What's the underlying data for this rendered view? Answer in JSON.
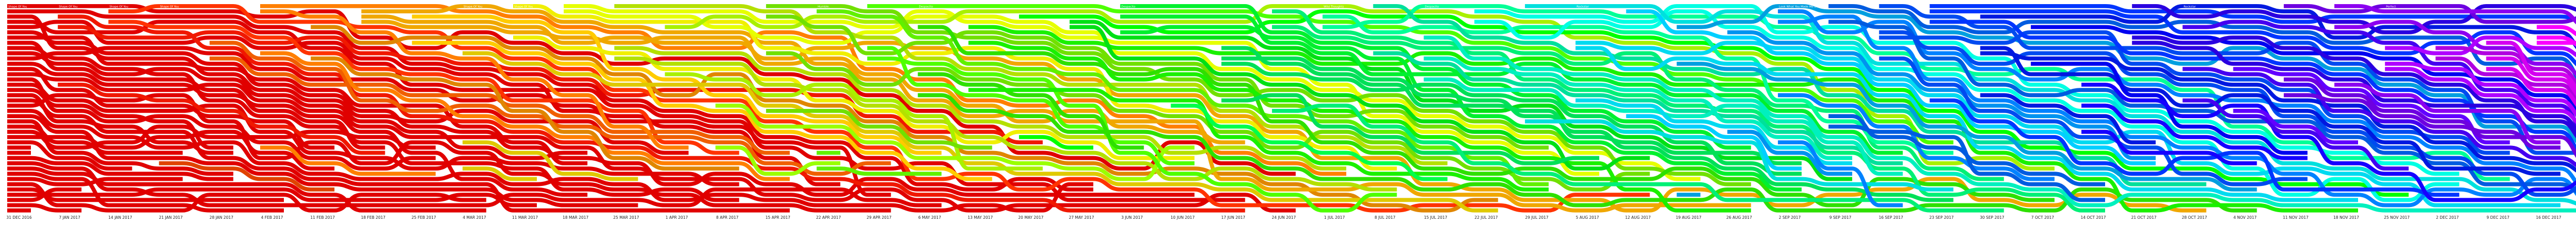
{
  "chart_data": {
    "type": "bump",
    "title": "",
    "xlabel": "",
    "ylabel": "",
    "x": [
      "31 DEC 2016",
      "7 JAN 2017",
      "14 JAN 2017",
      "21 JAN 2017",
      "28 JAN 2017",
      "4 FEB 2017",
      "11 FEB 2017",
      "18 FEB 2017",
      "25 FEB 2017",
      "4 MAR 2017",
      "11 MAR 2017",
      "18 MAR 2017",
      "25 MAR 2017",
      "1 APR 2017",
      "8 APR 2017",
      "15 APR 2017",
      "22 APR 2017",
      "29 APR 2017",
      "6 MAY 2017",
      "13 MAY 2017",
      "20 MAY 2017",
      "27 MAY 2017",
      "3 JUN 2017",
      "10 JUN 2017",
      "17 JUN 2017",
      "24 JUN 2017",
      "1 JUL 2017",
      "8 JUL 2017",
      "15 JUL 2017",
      "22 JUL 2017",
      "29 JUL 2017",
      "5 AUG 2017",
      "12 AUG 2017",
      "19 AUG 2017",
      "26 AUG 2017",
      "2 SEP 2017",
      "9 SEP 2017",
      "16 SEP 2017",
      "23 SEP 2017",
      "30 SEP 2017",
      "7 OCT 2017",
      "14 OCT 2017",
      "21 OCT 2017",
      "28 OCT 2017",
      "4 NOV 2017",
      "11 NOV 2017",
      "18 NOV 2017",
      "25 NOV 2017",
      "2 DEC 2017",
      "9 DEC 2017",
      "16 DEC 2017",
      "23 DEC 2017"
    ],
    "x_tick_labels": [
      "31 DEC 2016",
      "7 JAN 2017",
      "14 JAN 2017",
      "21 JAN 2017",
      "28 JAN 2017",
      "4 FEB 2017",
      "11 FEB 2017",
      "18 FEB 2017",
      "25 FEB 2017",
      "4 MAR 2017",
      "11 MAR 2017",
      "18 MAR 2017",
      "25 MAR 2017",
      "1 APR 2017",
      "8 APR 2017",
      "15 APR 2017",
      "22 APR 2017",
      "29 APR 2017",
      "6 MAY 2017",
      "13 MAY 2017",
      "20 MAY 2017",
      "27 MAY 2017",
      "3 JUN 2017",
      "10 JUN 2017",
      "17 JUN 2017",
      "24 JUN 2017",
      "1 JUL 2017",
      "8 JUL 2017",
      "15 JUL 2017",
      "22 JUL 2017",
      "29 JUL 2017",
      "5 AUG 2017",
      "12 AUG 2017",
      "19 AUG 2017",
      "26 AUG 2017",
      "2 SEP 2017",
      "9 SEP 2017",
      "16 SEP 2017",
      "23 SEP 2017",
      "30 SEP 2017",
      "7 OCT 2017",
      "14 OCT 2017",
      "21 OCT 2017",
      "28 OCT 2017",
      "4 NOV 2017",
      "11 NOV 2017",
      "18 NOV 2017",
      "25 NOV 2017",
      "2 DEC 2017",
      "9 DEC 2017",
      "16 DEC 2017",
      "23 DEC 2017"
    ],
    "ranks_per_week": 40,
    "y_axis": "rank (1 = top)",
    "ylim": [
      1,
      40
    ],
    "grid": false,
    "legend": "none",
    "entry_labels": [
      {
        "week": "31 DEC 2016",
        "rank": 1,
        "text": "Shape Of You"
      },
      {
        "week": "7 JAN 2017",
        "rank": 1,
        "text": "Shape Of You"
      },
      {
        "week": "14 JAN 2017",
        "rank": 1,
        "text": "Shape Of You"
      },
      {
        "week": "21 JAN 2017",
        "rank": 1,
        "text": "Shape Of You"
      },
      {
        "week": "4 MAR 2017",
        "rank": 1,
        "text": "Shape Of You"
      },
      {
        "week": "11 MAR 2017",
        "rank": 1,
        "text": "Shape Of You"
      },
      {
        "week": "22 APR 2017",
        "rank": 1,
        "text": "Humble."
      },
      {
        "week": "6 MAY 2017",
        "rank": 1,
        "text": "Despacito"
      },
      {
        "week": "3 JUN 2017",
        "rank": 1,
        "text": "Despacito"
      },
      {
        "week": "1 JUL 2017",
        "rank": 1,
        "text": "Wild Thoughts"
      },
      {
        "week": "15 JUL 2017",
        "rank": 1,
        "text": "Despacito"
      },
      {
        "week": "5 AUG 2017",
        "rank": 1,
        "text": "Rockstar"
      },
      {
        "week": "2 SEP 2017",
        "rank": 1,
        "text": "Look What You Made Me Do"
      },
      {
        "week": "28 OCT 2017",
        "rank": 1,
        "text": "Rockstar"
      },
      {
        "week": "25 NOV 2017",
        "rank": 1,
        "text": "Perfect"
      },
      {
        "week": "23 DEC 2017",
        "rank": 1,
        "text": "Perfect"
      }
    ],
    "series_style": "one band per entry, coloured by debut week; hue cycles red → orange → yellow → green → cyan → blue → magenta across the year",
    "colors": {
      "background": "#ffffff",
      "tick_text": "#222222",
      "label_text": "#ffffff"
    }
  }
}
